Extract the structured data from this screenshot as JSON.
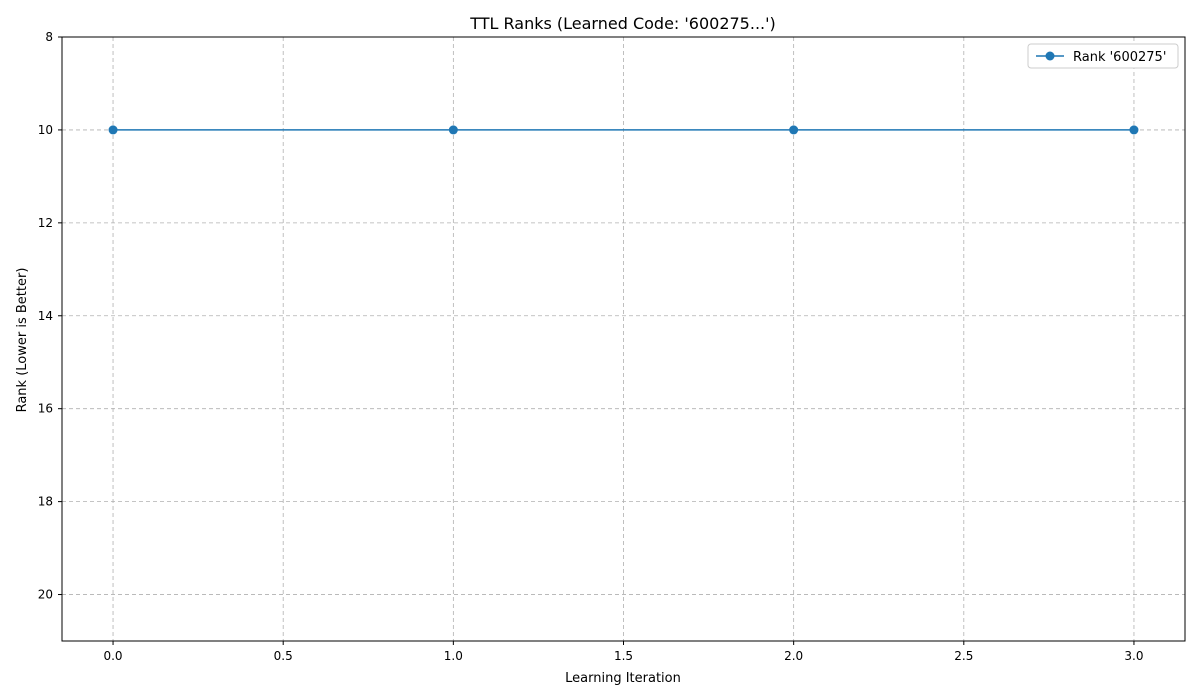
{
  "chart_data": {
    "type": "line",
    "title": "TTL Ranks (Learned Code: '600275...')",
    "xlabel": "Learning Iteration",
    "ylabel": "Rank (Lower is Better)",
    "xlim": [
      -0.15,
      3.15
    ],
    "ylim": [
      8,
      21
    ],
    "y_inverted": true,
    "grid": true,
    "legend_position": "top-right",
    "x_ticks": [
      0.0,
      0.5,
      1.0,
      1.5,
      2.0,
      2.5,
      3.0
    ],
    "x_tick_labels": [
      "0.0",
      "0.5",
      "1.0",
      "1.5",
      "2.0",
      "2.5",
      "3.0"
    ],
    "y_ticks": [
      8,
      10,
      12,
      14,
      16,
      18,
      20
    ],
    "y_tick_labels": [
      "8",
      "10",
      "12",
      "14",
      "16",
      "18",
      "20"
    ],
    "series": [
      {
        "name": "Rank '600275'",
        "color": "#1f77b4",
        "marker": "circle",
        "x": [
          0,
          1,
          2,
          3
        ],
        "y": [
          10,
          10,
          10,
          10
        ]
      }
    ]
  }
}
